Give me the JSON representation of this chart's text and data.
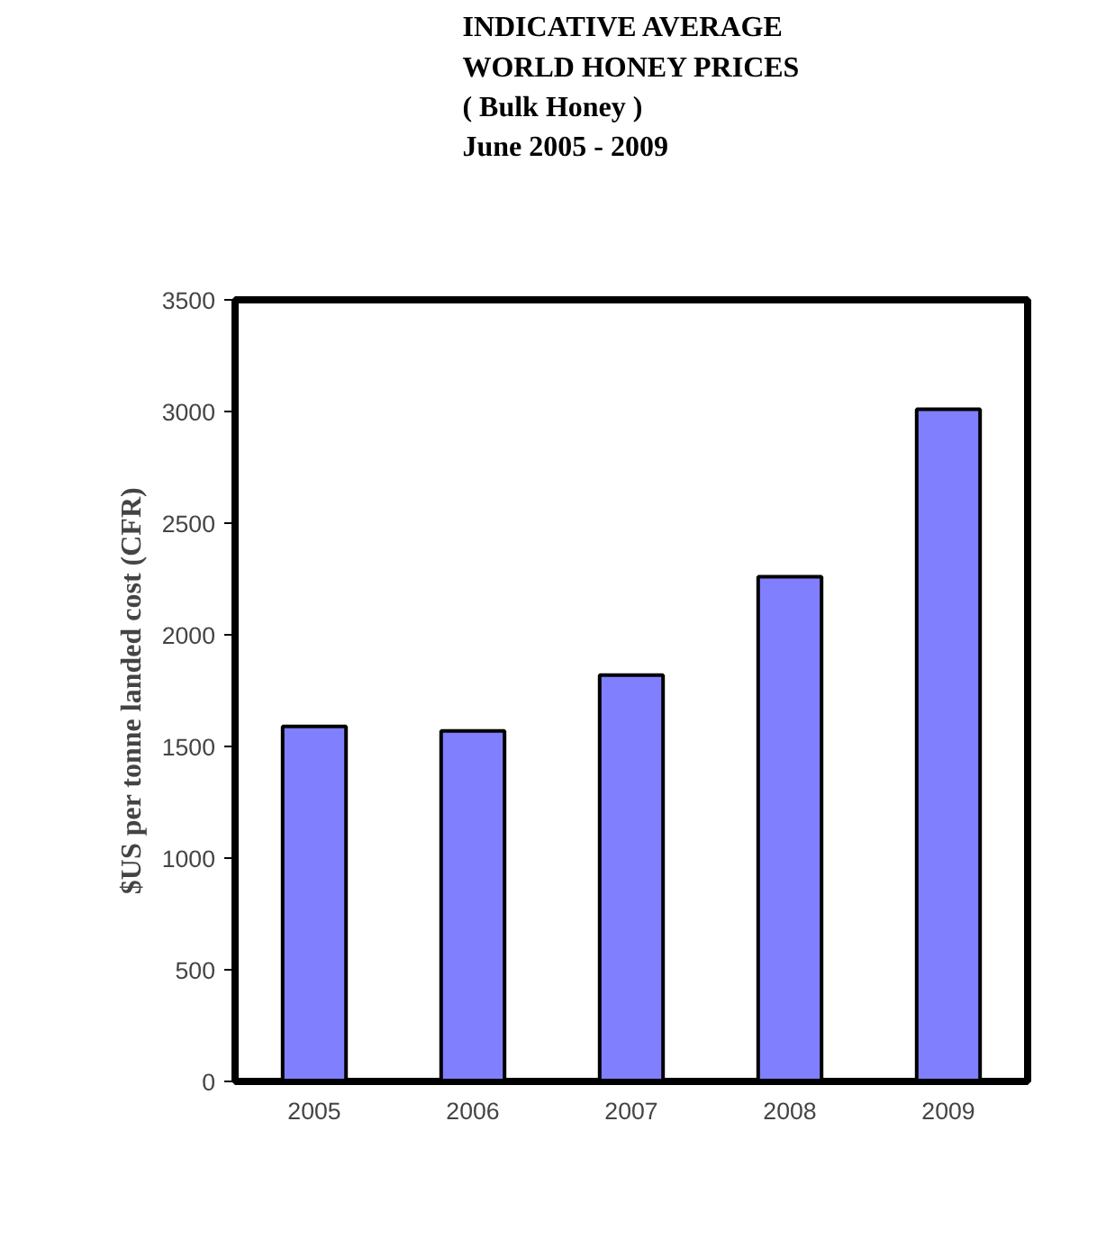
{
  "chart_data": {
    "type": "bar",
    "title": "INDICATIVE AVERAGE\nWORLD HONEY PRICES\n( Bulk Honey )\nJune 2005 - 2009",
    "ylabel": "$US per tonne landed cost (CFR)",
    "categories": [
      "2005",
      "2006",
      "2007",
      "2008",
      "2009"
    ],
    "values": [
      1590,
      1570,
      1820,
      2260,
      3010
    ],
    "color": "#8080ff",
    "ylim": [
      0,
      3500
    ],
    "yticks": [
      0,
      500,
      1000,
      1500,
      2000,
      2500,
      3000,
      3500
    ],
    "grid": false
  }
}
